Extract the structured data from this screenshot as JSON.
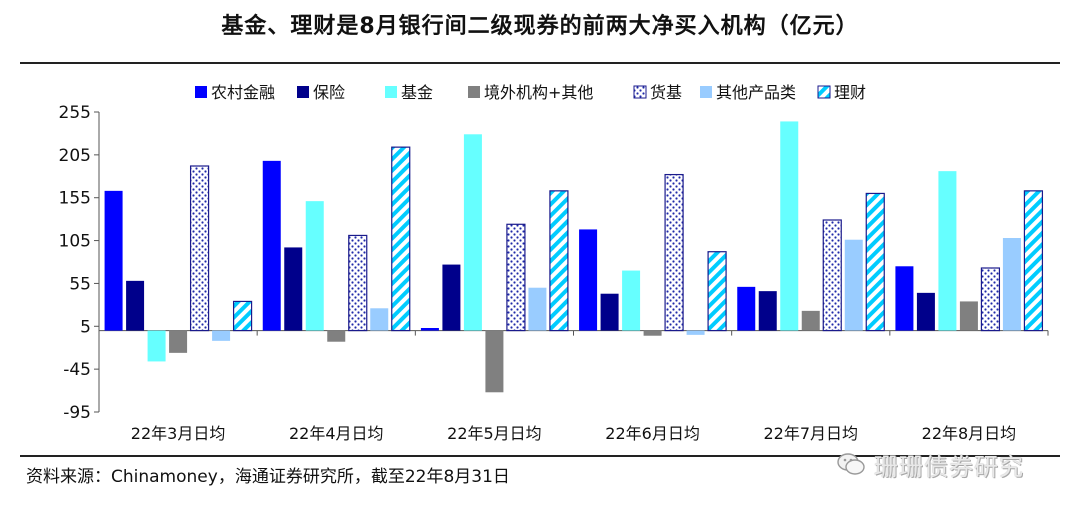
{
  "title": "基金、理财是8月银行间二级现券的前两大净买入机构（亿元）",
  "source_note": "资料来源：Chinamoney，海通证券研究所，截至22年8月31日",
  "watermark": "珊珊债券研究",
  "watermark_icon": "wechat-icon",
  "chart_data": {
    "type": "bar",
    "title": "基金、理财是8月银行间二级现券的前两大净买入机构（亿元）",
    "xlabel": "",
    "ylabel": "",
    "categories": [
      "22年3月日均",
      "22年4月日均",
      "22年5月日均",
      "22年6月日均",
      "22年7月日均",
      "22年8月日均"
    ],
    "ylim": [
      -95,
      255
    ],
    "yticks": [
      255,
      205,
      155,
      105,
      55,
      5,
      -45,
      -95
    ],
    "legend_position": "top",
    "grid": false,
    "series": [
      {
        "name": "农村金融",
        "color": "#0000ff",
        "pattern": "solid",
        "values": [
          163,
          198,
          3,
          118,
          51,
          75
        ]
      },
      {
        "name": "保险",
        "color": "#00008b",
        "pattern": "solid",
        "values": [
          58,
          97,
          77,
          43,
          46,
          44
        ]
      },
      {
        "name": "基金",
        "color": "#66ffff",
        "pattern": "solid",
        "values": [
          -36,
          151,
          229,
          70,
          244,
          186
        ]
      },
      {
        "name": "境外机构+其他",
        "color": "#808080",
        "pattern": "solid",
        "values": [
          -26,
          -13,
          -72,
          -6,
          23,
          34
        ]
      },
      {
        "name": "货基",
        "color": "#1f2aa8",
        "pattern": "dots",
        "values": [
          192,
          111,
          124,
          182,
          129,
          73
        ]
      },
      {
        "name": "其他产品类",
        "color": "#99ccff",
        "pattern": "solid",
        "values": [
          -12,
          26,
          50,
          -5,
          106,
          108
        ]
      },
      {
        "name": "理财",
        "color": "#1a1aa6",
        "pattern": "stripes",
        "values": [
          34,
          214,
          163,
          92,
          160,
          163
        ]
      }
    ]
  }
}
